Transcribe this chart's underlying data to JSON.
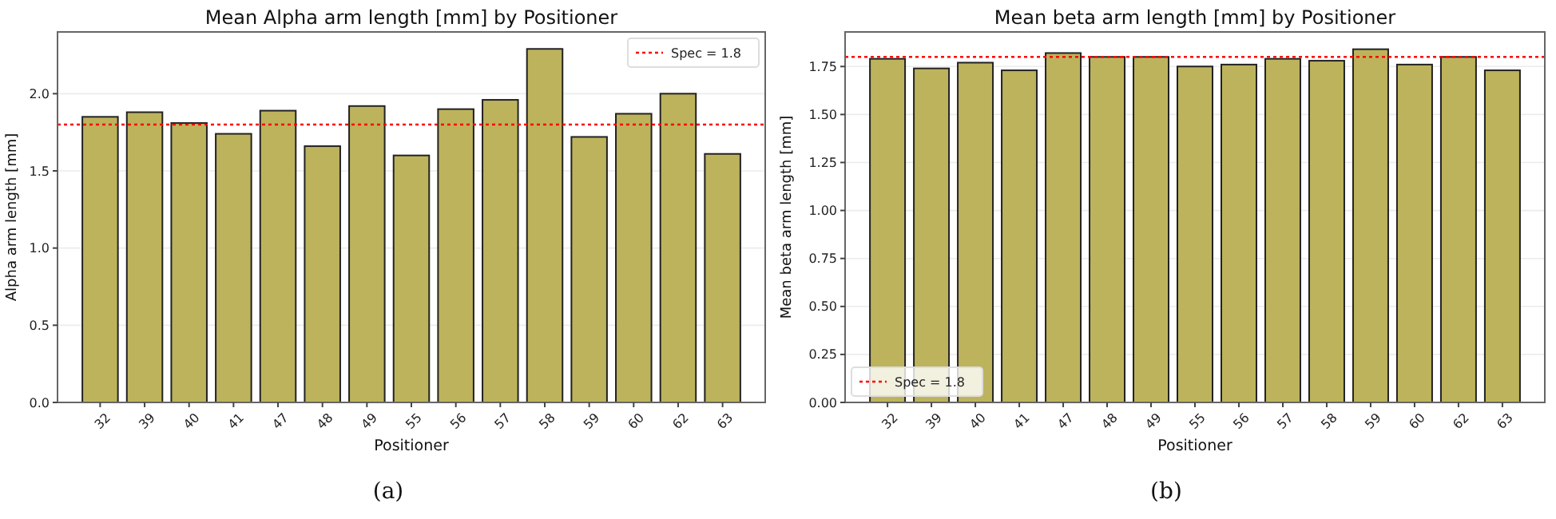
{
  "chart_data": [
    {
      "type": "bar",
      "title": "Mean Alpha arm length [mm] by Positioner",
      "xlabel": "Positioner",
      "ylabel": "Alpha arm length [mm]",
      "categories": [
        "32",
        "39",
        "40",
        "41",
        "47",
        "48",
        "49",
        "55",
        "56",
        "57",
        "58",
        "59",
        "60",
        "62",
        "63"
      ],
      "values": [
        1.85,
        1.88,
        1.81,
        1.74,
        1.89,
        1.66,
        1.92,
        1.6,
        1.9,
        1.96,
        2.29,
        1.72,
        1.87,
        2.0,
        1.61
      ],
      "color": "#bdb35d",
      "ylim": [
        0,
        2.4
      ],
      "yticks": [
        {
          "value": 0,
          "label": "0.0"
        },
        {
          "value": 0.5,
          "label": "0.5"
        },
        {
          "value": 1,
          "label": "1.0"
        },
        {
          "value": 1.5,
          "label": "1.5"
        },
        {
          "value": 2,
          "label": "2.0"
        }
      ],
      "grid": "y",
      "legend": "top right",
      "ref_lines": [
        {
          "axis": "y",
          "value": 1.8,
          "label": "Spec = 1.8",
          "color": "#ff0000",
          "line_style": "dotted"
        }
      ],
      "annotations": [
        "(a)"
      ]
    },
    {
      "type": "bar",
      "title": "Mean beta arm length [mm] by Positioner",
      "xlabel": "Positioner",
      "ylabel": "Mean beta arm length [mm]",
      "categories": [
        "32",
        "39",
        "40",
        "41",
        "47",
        "48",
        "49",
        "55",
        "56",
        "57",
        "58",
        "59",
        "60",
        "62",
        "63"
      ],
      "values": [
        1.79,
        1.74,
        1.77,
        1.73,
        1.82,
        1.8,
        1.8,
        1.75,
        1.76,
        1.79,
        1.78,
        1.84,
        1.76,
        1.8,
        1.73
      ],
      "color": "#bdb35d",
      "ylim": [
        0,
        1.93
      ],
      "yticks": [
        {
          "value": 0,
          "label": "0.00"
        },
        {
          "value": 0.25,
          "label": "0.25"
        },
        {
          "value": 0.5,
          "label": "0.50"
        },
        {
          "value": 0.75,
          "label": "0.75"
        },
        {
          "value": 1,
          "label": "1.00"
        },
        {
          "value": 1.25,
          "label": "1.25"
        },
        {
          "value": 1.5,
          "label": "1.50"
        },
        {
          "value": 1.75,
          "label": "1.75"
        }
      ],
      "grid": "y",
      "legend": "bottom left",
      "ref_lines": [
        {
          "axis": "y",
          "value": 1.8,
          "label": "Spec = 1.8",
          "color": "#ff0000",
          "line_style": "dotted"
        }
      ],
      "annotations": [
        "(b)"
      ]
    }
  ]
}
